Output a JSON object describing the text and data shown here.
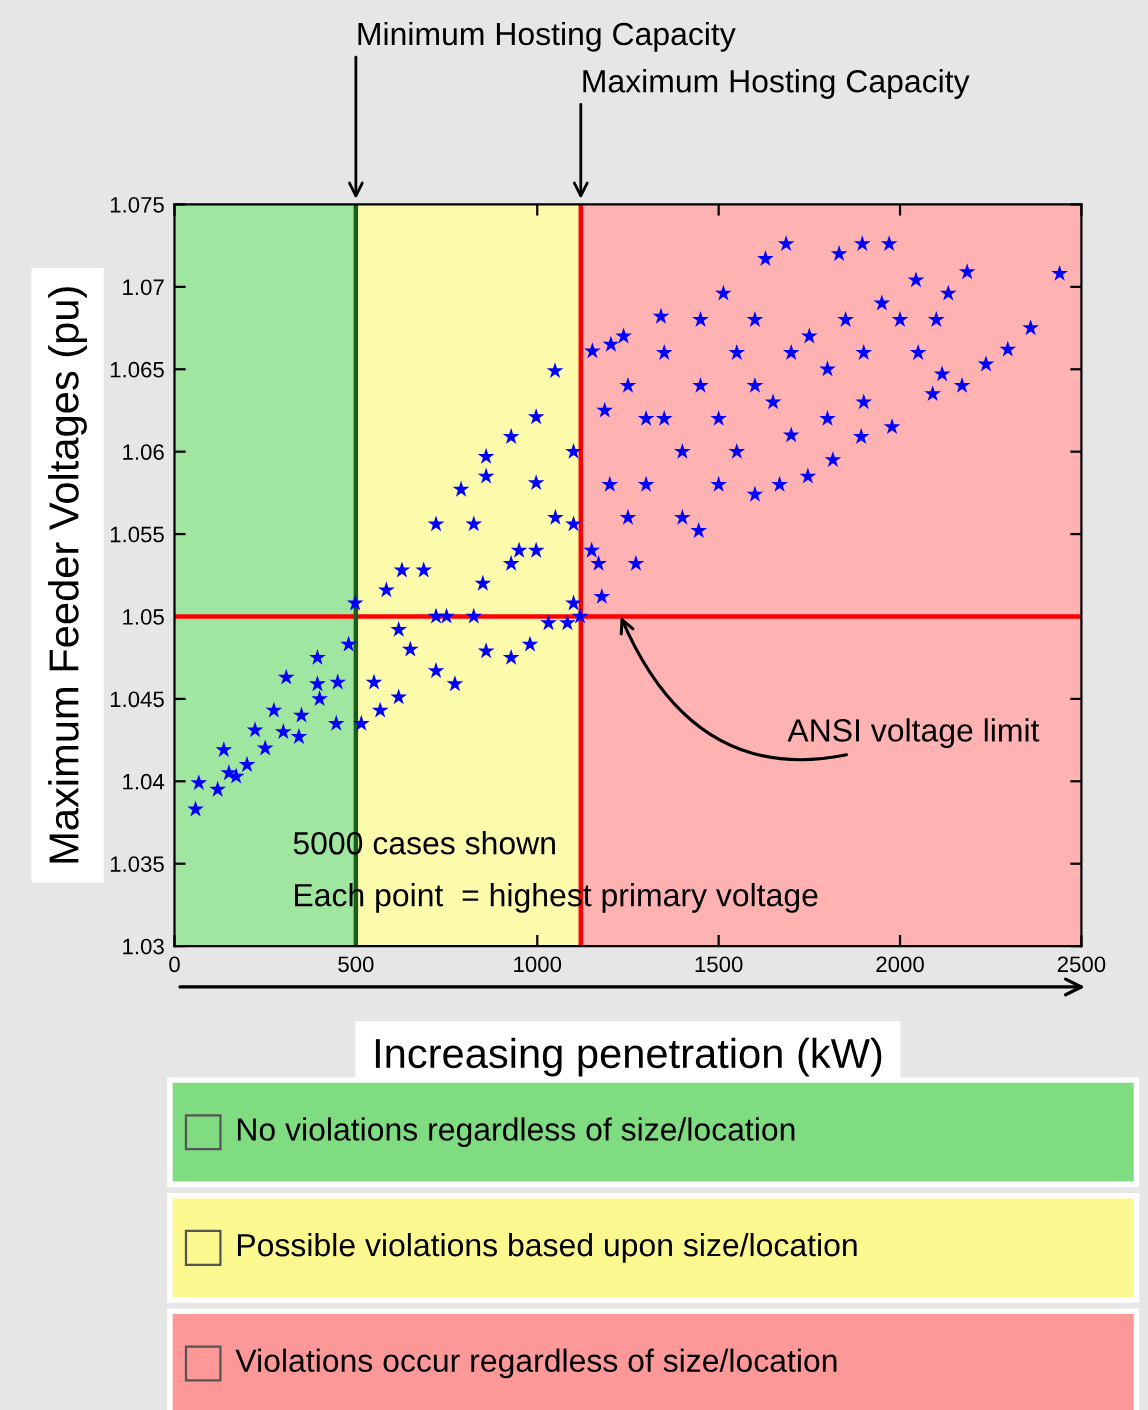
{
  "chart_data": {
    "type": "scatter",
    "xlabel": "Increasing penetration (kW)",
    "ylabel": "Maximum Feeder Voltages (pu)",
    "xlim": [
      0,
      2500
    ],
    "xticks": [
      0,
      500,
      1000,
      1500,
      2000,
      2500
    ],
    "ylim": [
      1.03,
      1.075
    ],
    "yticks": [
      1.03,
      1.035,
      1.04,
      1.045,
      1.05,
      1.055,
      1.06,
      1.065,
      1.07,
      1.075
    ],
    "grid": false,
    "legend": "bottom",
    "marker": "star",
    "series": [
      {
        "color": "#0000ff",
        "x": [
          58,
          67,
          136,
          274,
          394,
          480,
          515,
          618,
          721,
          859,
          928,
          1031,
          1100,
          498,
          584,
          687,
          627,
          721,
          790,
          859,
          928,
          997,
          1049,
          1152,
          1238,
          859,
          997,
          825,
          997,
          1100,
          1169,
          928,
          825,
          721,
          618,
          394,
          308,
          222,
          170,
          119,
          343,
          446,
          567,
          773,
          980,
          1083,
          2440,
          2360,
          2297,
          2237,
          2171,
          2116,
          2185,
          2133,
          2044,
          1970,
          1896,
          1832,
          1686,
          1629,
          1513,
          1341,
          1203,
          1186,
          2090,
          1978,
          1893,
          1815,
          1746,
          1668,
          1600,
          1445,
          1272,
          1178,
          1118,
          1300,
          1400,
          1350,
          1450,
          1500,
          1550,
          1600,
          1650,
          1700,
          1750,
          1800,
          1850,
          1900,
          1950,
          2000,
          2050,
          2100,
          1250,
          1300,
          1400,
          1500,
          1550,
          1200,
          1150,
          1250,
          1350,
          1700,
          1800,
          1900,
          1600,
          1450,
          150,
          200,
          250,
          300,
          350,
          400,
          450,
          550,
          650,
          750,
          850,
          950,
          1050,
          1100
        ],
        "values": [
          1.0383,
          1.0399,
          1.0419,
          1.0443,
          1.0459,
          1.0483,
          1.0435,
          1.0451,
          1.0467,
          1.0479,
          1.0475,
          1.0496,
          1.0508,
          1.0508,
          1.0516,
          1.0528,
          1.0528,
          1.0556,
          1.0577,
          1.0597,
          1.0609,
          1.0621,
          1.0649,
          1.0661,
          1.067,
          1.0585,
          1.0581,
          1.0556,
          1.054,
          1.0556,
          1.0532,
          1.0532,
          1.05,
          1.05,
          1.0492,
          1.0475,
          1.0463,
          1.0431,
          1.0403,
          1.0395,
          1.0427,
          1.0435,
          1.0443,
          1.0459,
          1.0483,
          1.0496,
          1.0708,
          1.0675,
          1.0662,
          1.0653,
          1.064,
          1.0647,
          1.0709,
          1.0696,
          1.0704,
          1.0726,
          1.0726,
          1.072,
          1.0726,
          1.0717,
          1.0696,
          1.0682,
          1.0665,
          1.0625,
          1.0635,
          1.0615,
          1.0609,
          1.0595,
          1.0585,
          1.058,
          1.0574,
          1.0552,
          1.0532,
          1.0512,
          1.05,
          1.058,
          1.06,
          1.062,
          1.064,
          1.062,
          1.066,
          1.064,
          1.063,
          1.066,
          1.067,
          1.065,
          1.068,
          1.066,
          1.069,
          1.068,
          1.066,
          1.068,
          1.056,
          1.062,
          1.056,
          1.058,
          1.06,
          1.058,
          1.054,
          1.064,
          1.066,
          1.061,
          1.062,
          1.063,
          1.068,
          1.068,
          1.0405,
          1.041,
          1.042,
          1.043,
          1.044,
          1.045,
          1.046,
          1.046,
          1.048,
          1.05,
          1.052,
          1.054,
          1.056,
          1.06
        ]
      }
    ],
    "bands": [
      {
        "axis": "x",
        "from": 0,
        "to": 500,
        "label": "No violations regardless of size/location",
        "color": "#80dc80"
      },
      {
        "axis": "x",
        "from": 500,
        "to": 1120,
        "label": "Possible violations based upon size/location",
        "color": "#fbf88f"
      },
      {
        "axis": "x",
        "from": 1120,
        "to": 2500,
        "label": "Violations occur regardless of size/location",
        "color": "#fd9898"
      }
    ],
    "ref_lines": [
      {
        "axis": "y",
        "value": 1.05,
        "color": "#ff0000",
        "line_style": "solid"
      },
      {
        "axis": "x",
        "value": 500,
        "color": "#1a5c1a",
        "line_style": "solid"
      },
      {
        "axis": "x",
        "value": 1120,
        "color": "#ff0000",
        "line_style": "solid"
      }
    ],
    "annotations": [
      {
        "text": "Minimum Hosting Capacity",
        "x": 500,
        "y": 1.075
      },
      {
        "text": "Maximum Hosting Capacity",
        "x": 1120,
        "y": 1.075
      },
      {
        "text": "ANSI voltage limit",
        "x": 1230,
        "y": 1.05
      },
      "5000 cases shown",
      "Each point  = highest primary voltage"
    ]
  }
}
